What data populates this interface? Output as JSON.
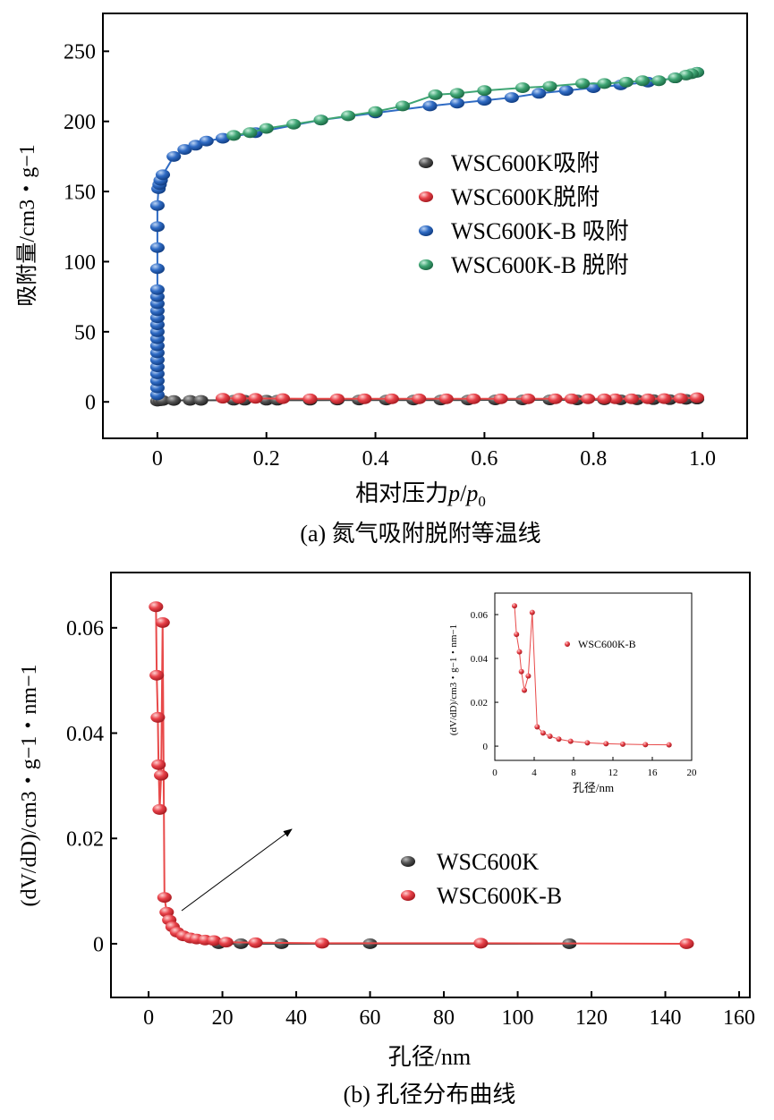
{
  "colors": {
    "black": "#444444",
    "red": "#e8424a",
    "blue": "#2f6bc4",
    "green": "#3fa574",
    "line_red": "#e84a4a",
    "line_blue": "#2f6bc4",
    "line_green": "#3fa574"
  },
  "chart_data": [
    {
      "type": "scatter",
      "caption": "(a) 氮气吸附脱附等温线",
      "xlabel": "相对压力p/p0",
      "xlabel_main": "相对压力",
      "xlabel_p": "p",
      "xlabel_p0": "p",
      "xlabel_sub": "0",
      "ylabel": "吸附量/cm3・g−1",
      "xlim": [
        -0.1,
        1.082
      ],
      "ylim": [
        -26,
        277
      ],
      "xticks": [
        0,
        0.2,
        0.4,
        0.6,
        0.8,
        1.0
      ],
      "xtick_labels": [
        "0",
        "0.2",
        "0.4",
        "0.6",
        "0.8",
        "1.0"
      ],
      "yticks": [
        0,
        50,
        100,
        150,
        200,
        250
      ],
      "ytick_labels": [
        "0",
        "50",
        "100",
        "150",
        "200",
        "250"
      ],
      "legend_position": "right-middle",
      "series": [
        {
          "name": "WSC600K吸附",
          "color": "black",
          "x": [
            0,
            0.005,
            0.01,
            0.03,
            0.06,
            0.08,
            0.14,
            0.16,
            0.2,
            0.22,
            0.28,
            0.33,
            0.37,
            0.42,
            0.47,
            0.52,
            0.57,
            0.62,
            0.67,
            0.72,
            0.77,
            0.82,
            0.85,
            0.88,
            0.91,
            0.94,
            0.97,
            0.99
          ],
          "y": [
            0.5,
            0.8,
            1,
            1,
            1.1,
            1.1,
            1.2,
            1.2,
            1.2,
            1.2,
            1.2,
            1.3,
            1.3,
            1.3,
            1.3,
            1.3,
            1.3,
            1.4,
            1.4,
            1.4,
            1.4,
            1.5,
            1.5,
            1.5,
            1.6,
            1.6,
            1.8,
            2
          ]
        },
        {
          "name": "WSC600K脱附",
          "color": "red",
          "x": [
            0.99,
            0.96,
            0.93,
            0.9,
            0.87,
            0.84,
            0.82,
            0.79,
            0.76,
            0.73,
            0.68,
            0.63,
            0.58,
            0.53,
            0.48,
            0.43,
            0.38,
            0.33,
            0.28,
            0.23,
            0.18,
            0.15,
            0.12
          ],
          "y": [
            3,
            2.5,
            2.3,
            2.2,
            2.2,
            2.2,
            2.2,
            2.2,
            2.2,
            2.2,
            2.2,
            2.2,
            2.2,
            2.2,
            2.2,
            2.2,
            2.2,
            2.2,
            2.2,
            2.3,
            2.5,
            2.5,
            2.6
          ]
        },
        {
          "name": "WSC600K-B 吸附",
          "color": "blue",
          "x": [
            0,
            0,
            0,
            0,
            0,
            0,
            0,
            0,
            0,
            0,
            0,
            0,
            0,
            0,
            0,
            0,
            0,
            0,
            0,
            0,
            0.002,
            0.004,
            0.006,
            0.01,
            0.03,
            0.05,
            0.07,
            0.09,
            0.12,
            0.18,
            0.3,
            0.4,
            0.5,
            0.55,
            0.6,
            0.65,
            0.7,
            0.75,
            0.8,
            0.85,
            0.9,
            0.95,
            0.99
          ],
          "y": [
            5,
            10,
            15,
            20,
            25,
            30,
            35,
            40,
            45,
            50,
            55,
            60,
            65,
            70,
            75,
            80,
            95,
            110,
            125,
            140,
            152,
            155,
            158,
            162,
            175,
            180,
            183,
            186,
            188,
            192,
            201,
            206,
            211,
            213,
            215,
            217,
            220,
            222,
            224,
            226,
            228,
            231,
            235
          ]
        },
        {
          "name": "WSC600K-B 脱附",
          "color": "green",
          "x": [
            0.99,
            0.98,
            0.97,
            0.95,
            0.92,
            0.89,
            0.86,
            0.82,
            0.78,
            0.72,
            0.67,
            0.6,
            0.55,
            0.51,
            0.45,
            0.4,
            0.35,
            0.3,
            0.25,
            0.2,
            0.17,
            0.14
          ],
          "y": [
            235,
            234,
            233,
            231,
            229,
            229,
            228,
            227,
            227,
            225,
            224,
            222,
            220,
            219,
            211,
            207,
            204,
            201,
            198,
            195,
            192,
            190
          ]
        }
      ]
    },
    {
      "type": "scatter",
      "caption": "(b) 孔径分布曲线",
      "xlabel": "孔径/nm",
      "ylabel": "(dV/dD)/cm3・g−1・nm−1",
      "xlim": [
        -10.2,
        162.9
      ],
      "ylim": [
        -0.0102,
        0.0705
      ],
      "xticks": [
        0,
        20,
        40,
        60,
        80,
        100,
        120,
        140,
        160
      ],
      "xtick_labels": [
        "0",
        "20",
        "40",
        "60",
        "80",
        "100",
        "120",
        "140",
        "160"
      ],
      "yticks": [
        0,
        0.02,
        0.04,
        0.06
      ],
      "ytick_labels": [
        "0",
        "0.02",
        "0.04",
        "0.06"
      ],
      "legend_position": "right-middle",
      "annotation": "arrow pointing to inset",
      "series": [
        {
          "name": "WSC600K",
          "color": "black",
          "x": [
            19,
            25,
            36,
            60,
            114
          ],
          "y": [
            0,
            0,
            0,
            0,
            0
          ]
        },
        {
          "name": "WSC600K-B",
          "color": "red",
          "x": [
            2.0,
            2.2,
            2.5,
            2.7,
            3.0,
            3.4,
            3.8,
            4.3,
            4.9,
            5.6,
            6.5,
            7.7,
            9.4,
            11.3,
            13.0,
            15.3,
            17.7,
            21,
            29,
            47,
            90,
            145.8
          ],
          "y": [
            0.064,
            0.051,
            0.043,
            0.034,
            0.0255,
            0.032,
            0.061,
            0.0088,
            0.006,
            0.0045,
            0.0032,
            0.0022,
            0.0015,
            0.0011,
            0.0009,
            0.0007,
            0.0006,
            0.0003,
            0.0002,
            0.0001,
            0.0001,
            0
          ]
        }
      ]
    },
    {
      "type": "line",
      "inset": true,
      "xlabel": "孔径/nm",
      "ylabel": "(dV/dD)/cm3・g−1・nm−1",
      "xlim": [
        0,
        20
      ],
      "ylim": [
        -0.0065,
        0.0698
      ],
      "xticks": [
        0,
        4,
        8,
        12,
        16,
        20
      ],
      "xtick_labels": [
        "0",
        "4",
        "8",
        "12",
        "16",
        "20"
      ],
      "yticks": [
        0,
        0.02,
        0.04,
        0.06
      ],
      "ytick_labels": [
        "0",
        "0.02",
        "0.04",
        "0.06"
      ],
      "legend_position": "right-top",
      "series": [
        {
          "name": "WSC600K-B",
          "color": "red",
          "x": [
            2.0,
            2.2,
            2.5,
            2.7,
            3.0,
            3.4,
            3.8,
            4.3,
            4.9,
            5.6,
            6.5,
            7.7,
            9.4,
            11.3,
            13.0,
            15.3,
            17.7
          ],
          "y": [
            0.064,
            0.051,
            0.043,
            0.034,
            0.0255,
            0.032,
            0.061,
            0.0088,
            0.006,
            0.0045,
            0.0032,
            0.0022,
            0.0015,
            0.0011,
            0.0009,
            0.0007,
            0.0006
          ]
        }
      ]
    }
  ]
}
